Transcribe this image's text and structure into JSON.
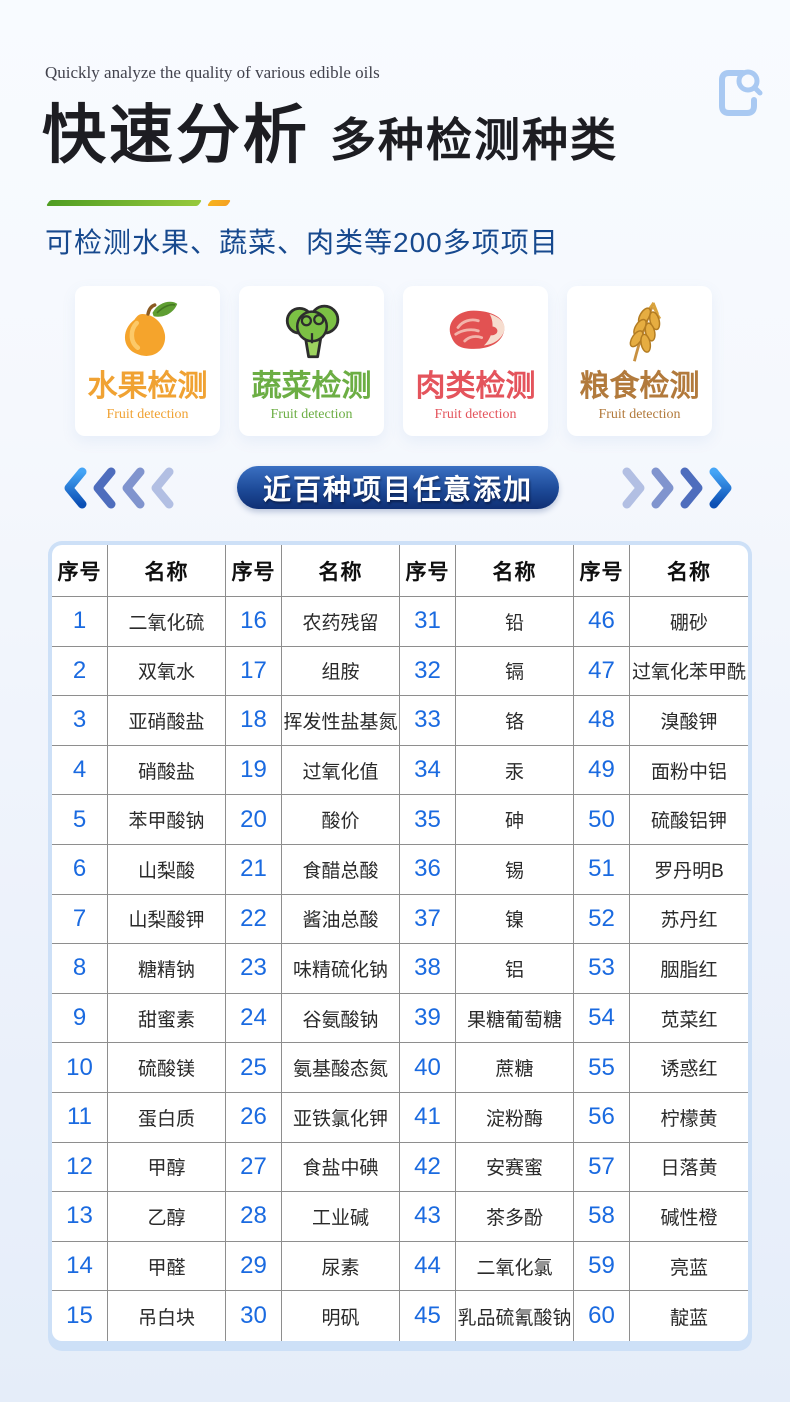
{
  "header": {
    "subtitle_en": "Quickly analyze the quality of various edible oils",
    "title_main": "快速分析",
    "title_sub": "多种检测种类",
    "capability": "可检测水果、蔬菜、肉类等200多项项目"
  },
  "cards": [
    {
      "title": "水果检测",
      "subtitle": "Fruit detection",
      "color": "#f0a233",
      "icon": "mango-icon"
    },
    {
      "title": "蔬菜检测",
      "subtitle": "Fruit detection",
      "color": "#6cae44",
      "icon": "broccoli-icon"
    },
    {
      "title": "肉类检测",
      "subtitle": "Fruit detection",
      "color": "#e4545c",
      "icon": "meat-icon"
    },
    {
      "title": "粮食检测",
      "subtitle": "Fruit detection",
      "color": "#b27a3c",
      "icon": "wheat-icon"
    }
  ],
  "pill": {
    "label": "近百种项目任意添加"
  },
  "colors": {
    "capability_text": "#17498e",
    "table_number_blue": "#1a6ae0",
    "table_grid_line": "#8e8e8e",
    "table_frame": "#cde0f7",
    "pill_gradient_top": "#3b70c2",
    "pill_gradient_bottom": "#0f2f74",
    "underline_green": "#4f9d23",
    "underline_orange": "#f5a122",
    "chevron_bright_top": "#45a5f6",
    "chevron_bright_bottom": "#0b4fb4",
    "chevron_mid": "#4e6dbd",
    "chevron_soft": "#8094ce",
    "chevron_light": "#b2bfe3"
  },
  "table": {
    "headers": [
      "序号",
      "名称",
      "序号",
      "名称",
      "序号",
      "名称",
      "序号",
      "名称"
    ],
    "rows": [
      [
        "1",
        "二氧化硫",
        "16",
        "农药残留",
        "31",
        "铅",
        "46",
        "硼砂"
      ],
      [
        "2",
        "双氧水",
        "17",
        "组胺",
        "32",
        "镉",
        "47",
        "过氧化苯甲酰"
      ],
      [
        "3",
        "亚硝酸盐",
        "18",
        "挥发性盐基氮",
        "33",
        "铬",
        "48",
        "溴酸钾"
      ],
      [
        "4",
        "硝酸盐",
        "19",
        "过氧化值",
        "34",
        "汞",
        "49",
        "面粉中铝"
      ],
      [
        "5",
        "苯甲酸钠",
        "20",
        "酸价",
        "35",
        "砷",
        "50",
        "硫酸铝钾"
      ],
      [
        "6",
        "山梨酸",
        "21",
        "食醋总酸",
        "36",
        "锡",
        "51",
        "罗丹明B"
      ],
      [
        "7",
        "山梨酸钾",
        "22",
        "酱油总酸",
        "37",
        "镍",
        "52",
        "苏丹红"
      ],
      [
        "8",
        "糖精钠",
        "23",
        "味精硫化钠",
        "38",
        "铝",
        "53",
        "胭脂红"
      ],
      [
        "9",
        "甜蜜素",
        "24",
        "谷氨酸钠",
        "39",
        "果糖葡萄糖",
        "54",
        "苋菜红"
      ],
      [
        "10",
        "硫酸镁",
        "25",
        "氨基酸态氮",
        "40",
        "蔗糖",
        "55",
        "诱惑红"
      ],
      [
        "11",
        "蛋白质",
        "26",
        "亚铁氯化钾",
        "41",
        "淀粉酶",
        "56",
        "柠檬黄"
      ],
      [
        "12",
        "甲醇",
        "27",
        "食盐中碘",
        "42",
        "安赛蜜",
        "57",
        "日落黄"
      ],
      [
        "13",
        "乙醇",
        "28",
        "工业碱",
        "43",
        "茶多酚",
        "58",
        "碱性橙"
      ],
      [
        "14",
        "甲醛",
        "29",
        "尿素",
        "44",
        "二氧化氯",
        "59",
        "亮蓝"
      ],
      [
        "15",
        "吊白块",
        "30",
        "明矾",
        "45",
        "乳品硫氰酸钠",
        "60",
        "靛蓝"
      ]
    ]
  }
}
